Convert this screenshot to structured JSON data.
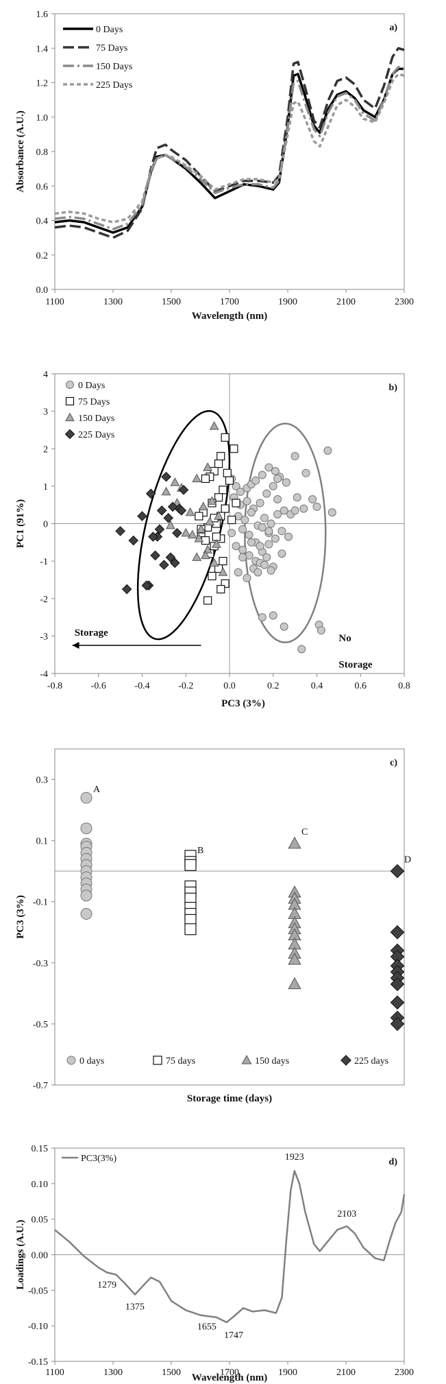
{
  "chart_data": [
    {
      "panel": "a)",
      "type": "line",
      "xlabel": "Wavelength (nm)",
      "ylabel": "Absorbance (A.U.)",
      "xlim": [
        1100,
        2300
      ],
      "ylim": [
        0.0,
        1.6
      ],
      "xticks": [
        1100,
        1300,
        1500,
        1700,
        1900,
        2100,
        2300
      ],
      "yticks": [
        0.0,
        0.2,
        0.4,
        0.6,
        0.8,
        1.0,
        1.2,
        1.4,
        1.6
      ],
      "ytick_labels": [
        "0.0",
        "0.2",
        "0.4",
        "0.6",
        "0.8",
        "1.0",
        "1.2",
        "1.4",
        "1.6"
      ],
      "grid": false,
      "legend_position": "top-left",
      "series": [
        {
          "name": "0 Days",
          "color": "#000000",
          "dash": "solid",
          "x": [
            1100,
            1150,
            1200,
            1250,
            1300,
            1350,
            1400,
            1430,
            1450,
            1480,
            1500,
            1550,
            1600,
            1650,
            1700,
            1750,
            1800,
            1850,
            1870,
            1900,
            1920,
            1935,
            1960,
            1990,
            2010,
            2040,
            2070,
            2100,
            2130,
            2160,
            2200,
            2230,
            2260,
            2280,
            2300
          ],
          "y": [
            0.39,
            0.4,
            0.39,
            0.36,
            0.33,
            0.36,
            0.48,
            0.68,
            0.77,
            0.78,
            0.76,
            0.7,
            0.62,
            0.53,
            0.57,
            0.61,
            0.6,
            0.58,
            0.62,
            0.95,
            1.24,
            1.25,
            1.12,
            0.95,
            0.91,
            1.05,
            1.13,
            1.15,
            1.11,
            1.04,
            1.0,
            1.1,
            1.25,
            1.28,
            1.28
          ]
        },
        {
          "name": "75 Days",
          "color": "#333333",
          "dash": "long",
          "x": [
            1100,
            1150,
            1200,
            1250,
            1300,
            1350,
            1400,
            1430,
            1450,
            1480,
            1500,
            1550,
            1600,
            1650,
            1700,
            1750,
            1800,
            1850,
            1870,
            1900,
            1920,
            1935,
            1960,
            1990,
            2010,
            2040,
            2070,
            2100,
            2130,
            2160,
            2200,
            2230,
            2260,
            2280,
            2300
          ],
          "y": [
            0.36,
            0.37,
            0.36,
            0.33,
            0.3,
            0.34,
            0.47,
            0.7,
            0.82,
            0.84,
            0.81,
            0.75,
            0.66,
            0.57,
            0.6,
            0.63,
            0.63,
            0.62,
            0.66,
            1.0,
            1.31,
            1.32,
            1.17,
            0.98,
            0.94,
            1.1,
            1.21,
            1.23,
            1.19,
            1.1,
            1.05,
            1.18,
            1.35,
            1.4,
            1.39
          ]
        },
        {
          "name": "150 Days",
          "color": "#8a8a8a",
          "dash": "dashdot",
          "x": [
            1100,
            1150,
            1200,
            1250,
            1300,
            1350,
            1400,
            1430,
            1450,
            1480,
            1500,
            1550,
            1600,
            1650,
            1700,
            1750,
            1800,
            1850,
            1870,
            1900,
            1920,
            1935,
            1960,
            1990,
            2010,
            2040,
            2070,
            2100,
            2130,
            2160,
            2200,
            2230,
            2260,
            2280,
            2300
          ],
          "y": [
            0.41,
            0.42,
            0.41,
            0.38,
            0.35,
            0.38,
            0.49,
            0.68,
            0.76,
            0.78,
            0.76,
            0.71,
            0.64,
            0.56,
            0.59,
            0.61,
            0.61,
            0.59,
            0.63,
            0.94,
            1.2,
            1.21,
            1.08,
            0.93,
            0.89,
            1.03,
            1.12,
            1.14,
            1.1,
            1.02,
            0.98,
            1.1,
            1.25,
            1.29,
            1.28
          ]
        },
        {
          "name": "225 Days",
          "color": "#9a9a9a",
          "dash": "short",
          "x": [
            1100,
            1150,
            1200,
            1250,
            1300,
            1350,
            1400,
            1430,
            1450,
            1480,
            1500,
            1550,
            1600,
            1650,
            1700,
            1750,
            1800,
            1850,
            1870,
            1900,
            1920,
            1935,
            1960,
            1990,
            2010,
            2040,
            2070,
            2100,
            2130,
            2160,
            2200,
            2230,
            2260,
            2280,
            2300
          ],
          "y": [
            0.44,
            0.45,
            0.44,
            0.41,
            0.39,
            0.41,
            0.51,
            0.69,
            0.76,
            0.78,
            0.77,
            0.72,
            0.66,
            0.58,
            0.61,
            0.64,
            0.64,
            0.62,
            0.64,
            0.9,
            1.08,
            1.09,
            0.99,
            0.86,
            0.83,
            0.95,
            1.07,
            1.1,
            1.06,
            0.99,
            0.97,
            1.08,
            1.21,
            1.25,
            1.24
          ]
        }
      ]
    },
    {
      "panel": "b)",
      "type": "scatter",
      "xlabel": "PC3 (3%)",
      "ylabel": "PC1 (91%)",
      "xlim": [
        -0.8,
        0.8
      ],
      "ylim": [
        -4,
        4
      ],
      "xticks": [
        -0.8,
        -0.6,
        -0.4,
        -0.2,
        0.0,
        0.2,
        0.4,
        0.6,
        0.8
      ],
      "xtick_labels": [
        "-0.8",
        "-0.6",
        "-0.4",
        "-0.2",
        "0.0",
        "0.2",
        "0.4",
        "0.6",
        "0.8"
      ],
      "yticks": [
        -4,
        -3,
        -2,
        -1,
        0,
        1,
        2,
        3,
        4
      ],
      "ytick_labels": [
        "-4",
        "-3",
        "-2",
        "-1",
        "0",
        "1",
        "2",
        "3",
        "4"
      ],
      "grid": false,
      "legend_position": "top-left",
      "annotations": [
        "Storage",
        "No",
        "Storage"
      ],
      "ellipses": [
        {
          "group": "Storage",
          "center": [
            -0.21,
            -0.04
          ],
          "radii": [
            0.17,
            3.13
          ],
          "angle_deg": 14,
          "color": "#000000"
        },
        {
          "group": "No Storage",
          "center": [
            0.255,
            -0.25
          ],
          "radii": [
            0.185,
            2.92
          ],
          "angle_deg": 0,
          "color": "#808080"
        }
      ],
      "series": [
        {
          "name": "0 Days",
          "marker": "circle",
          "color": "#c8c8c8",
          "x": [
            0.01,
            0.03,
            0.05,
            0.08,
            0.1,
            0.12,
            0.15,
            0.18,
            0.21,
            0.23,
            0.26,
            0.3,
            0.35,
            0.4,
            0.45,
            0.47,
            0.02,
            0.05,
            0.08,
            0.11,
            0.14,
            0.17,
            0.2,
            0.22,
            0.25,
            0.28,
            0.31,
            0.34,
            0.04,
            0.07,
            0.1,
            0.13,
            0.16,
            0.19,
            0.22,
            0.24,
            0.27,
            0.06,
            0.09,
            0.12,
            0.15,
            0.18,
            0.21,
            0.03,
            0.06,
            0.09,
            0.12,
            0.15,
            0.18,
            0.24,
            0.11,
            0.14,
            0.17,
            0.2,
            0.04,
            0.08,
            0.13,
            0.16,
            0.19,
            0.01,
            0.06,
            0.1,
            0.14,
            0.18,
            0.22,
            0.26,
            0.3,
            0.38,
            0.41,
            0.42,
            0.33,
            0.15,
            0.2,
            0.25
          ],
          "y": [
            1.2,
            1.0,
            0.85,
            0.95,
            1.05,
            1.15,
            1.3,
            1.5,
            1.4,
            1.25,
            1.1,
            1.8,
            1.35,
            0.45,
            1.95,
            0.3,
            0.7,
            0.5,
            0.6,
            0.4,
            0.55,
            0.8,
            1.0,
            0.65,
            0.35,
            0.25,
            0.7,
            0.4,
            0.2,
            0.1,
            0.3,
            -0.05,
            0.15,
            0.0,
            0.25,
            -0.2,
            -0.35,
            -0.15,
            -0.3,
            -0.5,
            -0.1,
            -0.25,
            -0.4,
            -0.6,
            -0.7,
            -0.85,
            -1.0,
            -0.75,
            -0.55,
            -0.8,
            -1.2,
            -1.05,
            -0.9,
            -1.15,
            -1.3,
            -1.45,
            -1.3,
            -1.1,
            -1.25,
            -0.25,
            -0.9,
            -0.5,
            -0.6,
            -0.2,
            1.2,
            1.1,
            0.35,
            0.65,
            -2.7,
            -2.85,
            -3.35,
            -2.5,
            -2.45,
            -2.75
          ]
        },
        {
          "name": "75 Days",
          "marker": "square",
          "color": "#ffffff",
          "x": [
            -0.02,
            -0.04,
            -0.05,
            -0.01,
            0.02,
            -0.07,
            -0.09,
            -0.11,
            -0.03,
            -0.05,
            -0.08,
            -0.12,
            -0.14,
            -0.02,
            0.0,
            -0.06,
            -0.1,
            -0.13,
            -0.04,
            -0.07,
            -0.09,
            -0.03,
            -0.05,
            -0.11,
            -0.08,
            -0.02,
            -0.04,
            0.01,
            0.03,
            -0.06,
            -0.1,
            -0.13,
            -0.04,
            -0.07
          ],
          "y": [
            2.3,
            1.8,
            1.6,
            1.35,
            2.0,
            1.4,
            1.25,
            1.2,
            0.9,
            0.7,
            0.55,
            0.3,
            0.2,
            0.4,
            1.15,
            0.0,
            -0.1,
            -0.25,
            -0.4,
            -0.6,
            -0.8,
            -1.0,
            -1.2,
            -0.45,
            -1.4,
            -1.6,
            -1.75,
            0.1,
            0.55,
            -0.35,
            -2.05,
            -0.15,
            0.2,
            0.15
          ]
        },
        {
          "name": "150 Days",
          "marker": "triangle",
          "color": "#a8a8a8",
          "x": [
            -0.07,
            -0.1,
            -0.15,
            -0.22,
            -0.25,
            -0.29,
            -0.08,
            -0.12,
            -0.18,
            -0.24,
            -0.05,
            -0.09,
            -0.13,
            -0.17,
            -0.27,
            -0.06,
            -0.1,
            -0.15,
            -0.2,
            -0.03,
            -0.07,
            -0.11,
            -0.14
          ],
          "y": [
            2.6,
            1.5,
            1.2,
            0.95,
            1.1,
            0.85,
            0.6,
            0.45,
            0.3,
            0.55,
            0.2,
            0.05,
            -0.15,
            -0.3,
            -0.05,
            -0.55,
            -0.7,
            -0.9,
            -0.25,
            -1.3,
            -1.05,
            -0.85,
            -0.4
          ]
        },
        {
          "name": "225 Days",
          "marker": "diamond",
          "color": "#404040",
          "x": [
            -0.5,
            -0.47,
            -0.44,
            -0.4,
            -0.37,
            -0.36,
            -0.34,
            -0.33,
            -0.31,
            -0.29,
            -0.27,
            -0.25,
            -0.23,
            -0.21,
            -0.38,
            -0.35,
            -0.3,
            -0.26,
            -0.22,
            -0.28,
            -0.32,
            -0.24
          ],
          "y": [
            -0.2,
            -1.75,
            -0.45,
            0.2,
            -1.65,
            0.8,
            -0.85,
            -0.35,
            0.35,
            1.25,
            -0.9,
            -1.05,
            0.4,
            0.9,
            -1.65,
            -0.35,
            -1.1,
            0.45,
            0.35,
            0.15,
            -0.15,
            -0.25
          ]
        }
      ]
    },
    {
      "panel": "c)",
      "type": "scatter",
      "xlabel": "Storage time (days)",
      "ylabel": "PC3 (3%)",
      "ylim": [
        -0.7,
        0.4
      ],
      "yticks": [
        -0.7,
        -0.5,
        -0.3,
        -0.1,
        0.1,
        0.3
      ],
      "ytick_labels": [
        "-0.7",
        "-0.5",
        "-0.3",
        "-0.1",
        "0.1",
        "0.3"
      ],
      "grid": false,
      "legend_position": "bottom",
      "categories": [
        "0 days",
        "75 days",
        "150 days",
        "225 days"
      ],
      "group_letters": [
        "A",
        "B",
        "C",
        "D"
      ],
      "letter_values": [
        0.25,
        0.05,
        0.11,
        0.02
      ],
      "series": [
        {
          "name": "0 days",
          "marker": "circle",
          "color": "#c8c8c8",
          "values": [
            0.24,
            0.14,
            0.09,
            0.08,
            0.06,
            0.04,
            0.02,
            0.0,
            -0.02,
            -0.04,
            -0.06,
            -0.08,
            -0.14
          ]
        },
        {
          "name": "75 days",
          "marker": "square",
          "color": "#ffffff",
          "values": [
            0.05,
            0.03,
            0.02,
            -0.05,
            -0.07,
            -0.09,
            -0.12,
            -0.14,
            -0.16,
            -0.19
          ]
        },
        {
          "name": "150 days",
          "marker": "triangle",
          "color": "#a8a8a8",
          "values": [
            0.09,
            -0.07,
            -0.09,
            -0.11,
            -0.14,
            -0.17,
            -0.19,
            -0.21,
            -0.24,
            -0.27,
            -0.29,
            -0.37
          ]
        },
        {
          "name": "225 days",
          "marker": "diamond",
          "color": "#404040",
          "values": [
            0.0,
            -0.2,
            -0.26,
            -0.28,
            -0.31,
            -0.33,
            -0.35,
            -0.37,
            -0.43,
            -0.48,
            -0.5
          ]
        }
      ]
    },
    {
      "panel": "d)",
      "type": "line",
      "xlabel": "Wavelength (nm)",
      "ylabel": "Loadings (A.U.)",
      "xlim": [
        1100,
        2300
      ],
      "ylim": [
        -0.15,
        0.15
      ],
      "xticks": [
        1100,
        1300,
        1500,
        1700,
        1900,
        2100,
        2300
      ],
      "yticks": [
        -0.15,
        -0.1,
        -0.05,
        0.0,
        0.05,
        0.1,
        0.15
      ],
      "ytick_labels": [
        "-0.15",
        "-0.10",
        "-0.05",
        "0.00",
        "0.05",
        "0.10",
        "0.15"
      ],
      "grid": false,
      "legend_position": "top-left",
      "annotations": [
        "1923",
        "2103",
        "1279",
        "1375",
        "1655",
        "1747"
      ],
      "series": [
        {
          "name": "PC3(3%)",
          "color": "#808080",
          "x": [
            1100,
            1150,
            1200,
            1250,
            1279,
            1310,
            1340,
            1375,
            1400,
            1430,
            1460,
            1500,
            1550,
            1600,
            1655,
            1690,
            1720,
            1747,
            1780,
            1820,
            1860,
            1880,
            1895,
            1910,
            1923,
            1940,
            1960,
            1990,
            2010,
            2040,
            2070,
            2103,
            2130,
            2160,
            2200,
            2230,
            2250,
            2270,
            2290,
            2300
          ],
          "y": [
            0.035,
            0.018,
            -0.002,
            -0.018,
            -0.025,
            -0.028,
            -0.04,
            -0.056,
            -0.045,
            -0.032,
            -0.038,
            -0.065,
            -0.078,
            -0.085,
            -0.088,
            -0.095,
            -0.085,
            -0.075,
            -0.08,
            -0.078,
            -0.082,
            -0.06,
            0.02,
            0.09,
            0.118,
            0.1,
            0.06,
            0.015,
            0.005,
            0.02,
            0.035,
            0.04,
            0.03,
            0.01,
            -0.005,
            -0.008,
            0.02,
            0.045,
            0.06,
            0.085
          ]
        }
      ]
    }
  ]
}
